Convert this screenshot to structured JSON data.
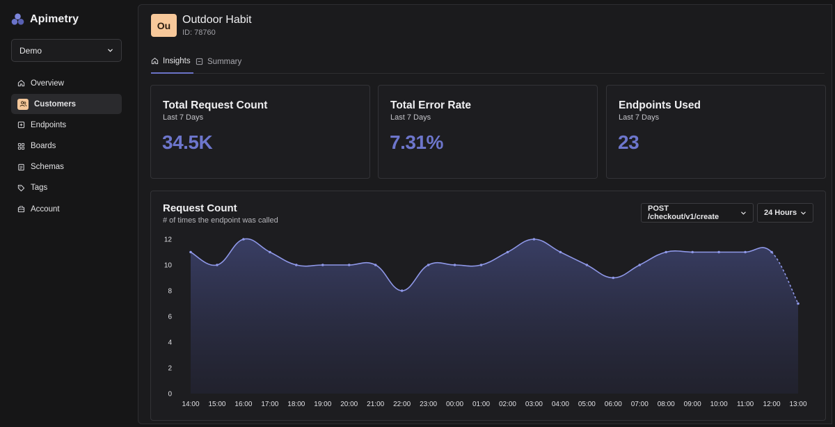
{
  "brand": {
    "name": "Apimetry"
  },
  "org_select": {
    "value": "Demo"
  },
  "sidebar": {
    "items": [
      {
        "label": "Overview",
        "icon": "home-icon"
      },
      {
        "label": "Customers",
        "icon": "users-icon",
        "active": true
      },
      {
        "label": "Endpoints",
        "icon": "endpoint-icon"
      },
      {
        "label": "Boards",
        "icon": "boards-icon"
      },
      {
        "label": "Schemas",
        "icon": "schema-icon"
      },
      {
        "label": "Tags",
        "icon": "tag-icon"
      },
      {
        "label": "Account",
        "icon": "account-icon"
      }
    ]
  },
  "customer": {
    "initials": "Ou",
    "name": "Outdoor Habit",
    "id_label": "ID: 78760"
  },
  "tabs": {
    "insights": "Insights",
    "summary": "Summary"
  },
  "cards": [
    {
      "title": "Total Request Count",
      "subtitle": "Last 7 Days",
      "value": "34.5K"
    },
    {
      "title": "Total Error Rate",
      "subtitle": "Last 7 Days",
      "value": "7.31%"
    },
    {
      "title": "Endpoints Used",
      "subtitle": "Last 7 Days",
      "value": "23"
    }
  ],
  "request_chart": {
    "title": "Request Count",
    "subtitle": "# of times the endpoint was called",
    "endpoint_select": "POST /checkout/v1/create",
    "range_select": "24 Hours"
  },
  "colors": {
    "accent": "#6d76cc",
    "line": "#8f98e8",
    "avatar_bg": "#f7c89a"
  },
  "chart_data": {
    "type": "area",
    "title": "Request Count",
    "xlabel": "",
    "ylabel": "",
    "x": [
      "14:00",
      "15:00",
      "16:00",
      "17:00",
      "18:00",
      "19:00",
      "20:00",
      "21:00",
      "22:00",
      "23:00",
      "00:00",
      "01:00",
      "02:00",
      "03:00",
      "04:00",
      "05:00",
      "06:00",
      "07:00",
      "08:00",
      "09:00",
      "10:00",
      "11:00",
      "12:00",
      "13:00"
    ],
    "values": [
      11,
      10,
      12,
      11,
      10,
      10,
      10,
      10,
      8,
      10,
      10,
      10,
      11,
      12,
      11,
      10,
      9,
      10,
      11,
      11,
      11,
      11,
      11,
      7
    ],
    "ylim": [
      0,
      12
    ],
    "yticks": [
      0,
      2,
      4,
      6,
      8,
      10,
      12
    ],
    "partial_last_point": true
  }
}
